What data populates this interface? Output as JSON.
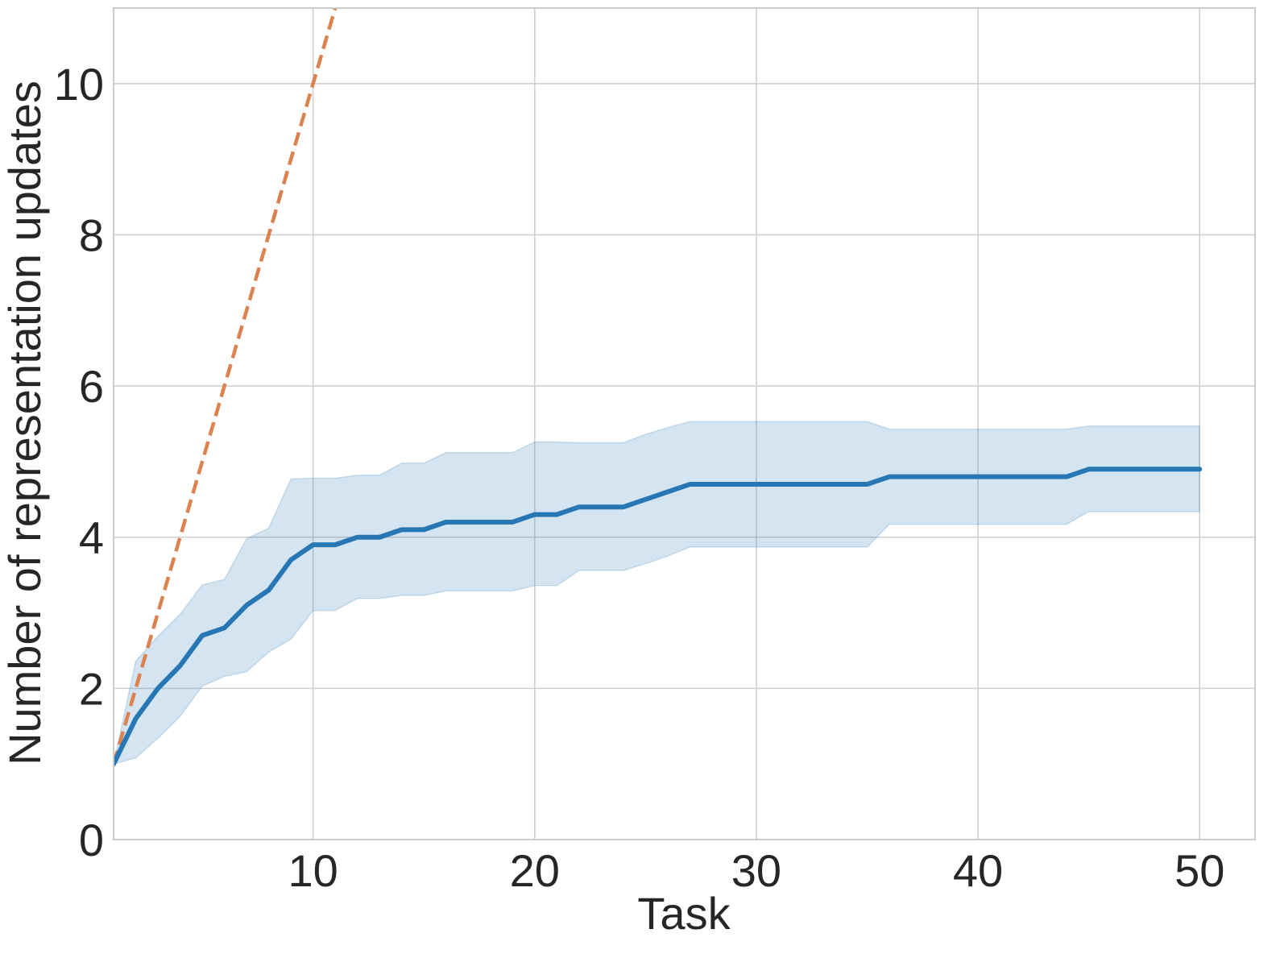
{
  "chart_data": {
    "type": "line",
    "title": "",
    "xlabel": "Task",
    "ylabel": "Number of representation updates",
    "xlim": [
      1,
      52.5
    ],
    "ylim": [
      0,
      11
    ],
    "xticks": [
      10,
      20,
      30,
      40,
      50
    ],
    "yticks": [
      0,
      2,
      4,
      6,
      8,
      10
    ],
    "grid": true,
    "colors": {
      "mean_line": "#2677b4",
      "band_fill": "#2677b4",
      "reference_line": "#dc8250",
      "grid": "#d0d0d0",
      "spine": "#cccccc",
      "text": "#262626"
    },
    "series": [
      {
        "style": "dashed",
        "x": [
          1,
          11
        ],
        "y": [
          1,
          11
        ]
      },
      {
        "style": "solid",
        "x": [
          1,
          2,
          3,
          4,
          5,
          6,
          7,
          8,
          9,
          10,
          11,
          12,
          13,
          14,
          15,
          16,
          17,
          18,
          19,
          20,
          21,
          22,
          23,
          24,
          25,
          26,
          27,
          28,
          29,
          30,
          31,
          32,
          33,
          34,
          35,
          36,
          37,
          38,
          39,
          40,
          41,
          42,
          43,
          44,
          45,
          46,
          47,
          48,
          49,
          50
        ],
        "y": [
          1.0,
          1.6,
          2.0,
          2.3,
          2.7,
          2.8,
          3.1,
          3.3,
          3.7,
          3.9,
          3.9,
          4.0,
          4.0,
          4.1,
          4.1,
          4.2,
          4.2,
          4.2,
          4.2,
          4.3,
          4.3,
          4.4,
          4.4,
          4.4,
          4.5,
          4.6,
          4.7,
          4.7,
          4.7,
          4.7,
          4.7,
          4.7,
          4.7,
          4.7,
          4.7,
          4.8,
          4.8,
          4.8,
          4.8,
          4.8,
          4.8,
          4.8,
          4.8,
          4.8,
          4.9,
          4.9,
          4.9,
          4.9,
          4.9,
          4.9
        ],
        "lower": [
          1.0,
          1.08,
          1.34,
          1.63,
          2.03,
          2.16,
          2.22,
          2.48,
          2.65,
          3.03,
          3.03,
          3.19,
          3.19,
          3.23,
          3.23,
          3.29,
          3.29,
          3.29,
          3.29,
          3.36,
          3.36,
          3.56,
          3.56,
          3.56,
          3.65,
          3.75,
          3.87,
          3.87,
          3.87,
          3.87,
          3.87,
          3.87,
          3.87,
          3.87,
          3.87,
          4.17,
          4.17,
          4.17,
          4.17,
          4.17,
          4.17,
          4.17,
          4.17,
          4.17,
          4.34,
          4.34,
          4.34,
          4.34,
          4.34,
          4.34
        ],
        "upper": [
          1.0,
          2.36,
          2.69,
          2.98,
          3.37,
          3.44,
          3.98,
          4.12,
          4.77,
          4.78,
          4.78,
          4.82,
          4.82,
          4.98,
          4.98,
          5.12,
          5.12,
          5.12,
          5.12,
          5.26,
          5.26,
          5.25,
          5.25,
          5.25,
          5.36,
          5.45,
          5.53,
          5.53,
          5.53,
          5.53,
          5.53,
          5.53,
          5.53,
          5.53,
          5.53,
          5.43,
          5.43,
          5.43,
          5.43,
          5.43,
          5.43,
          5.43,
          5.43,
          5.43,
          5.47,
          5.47,
          5.47,
          5.47,
          5.47,
          5.47
        ]
      }
    ]
  }
}
